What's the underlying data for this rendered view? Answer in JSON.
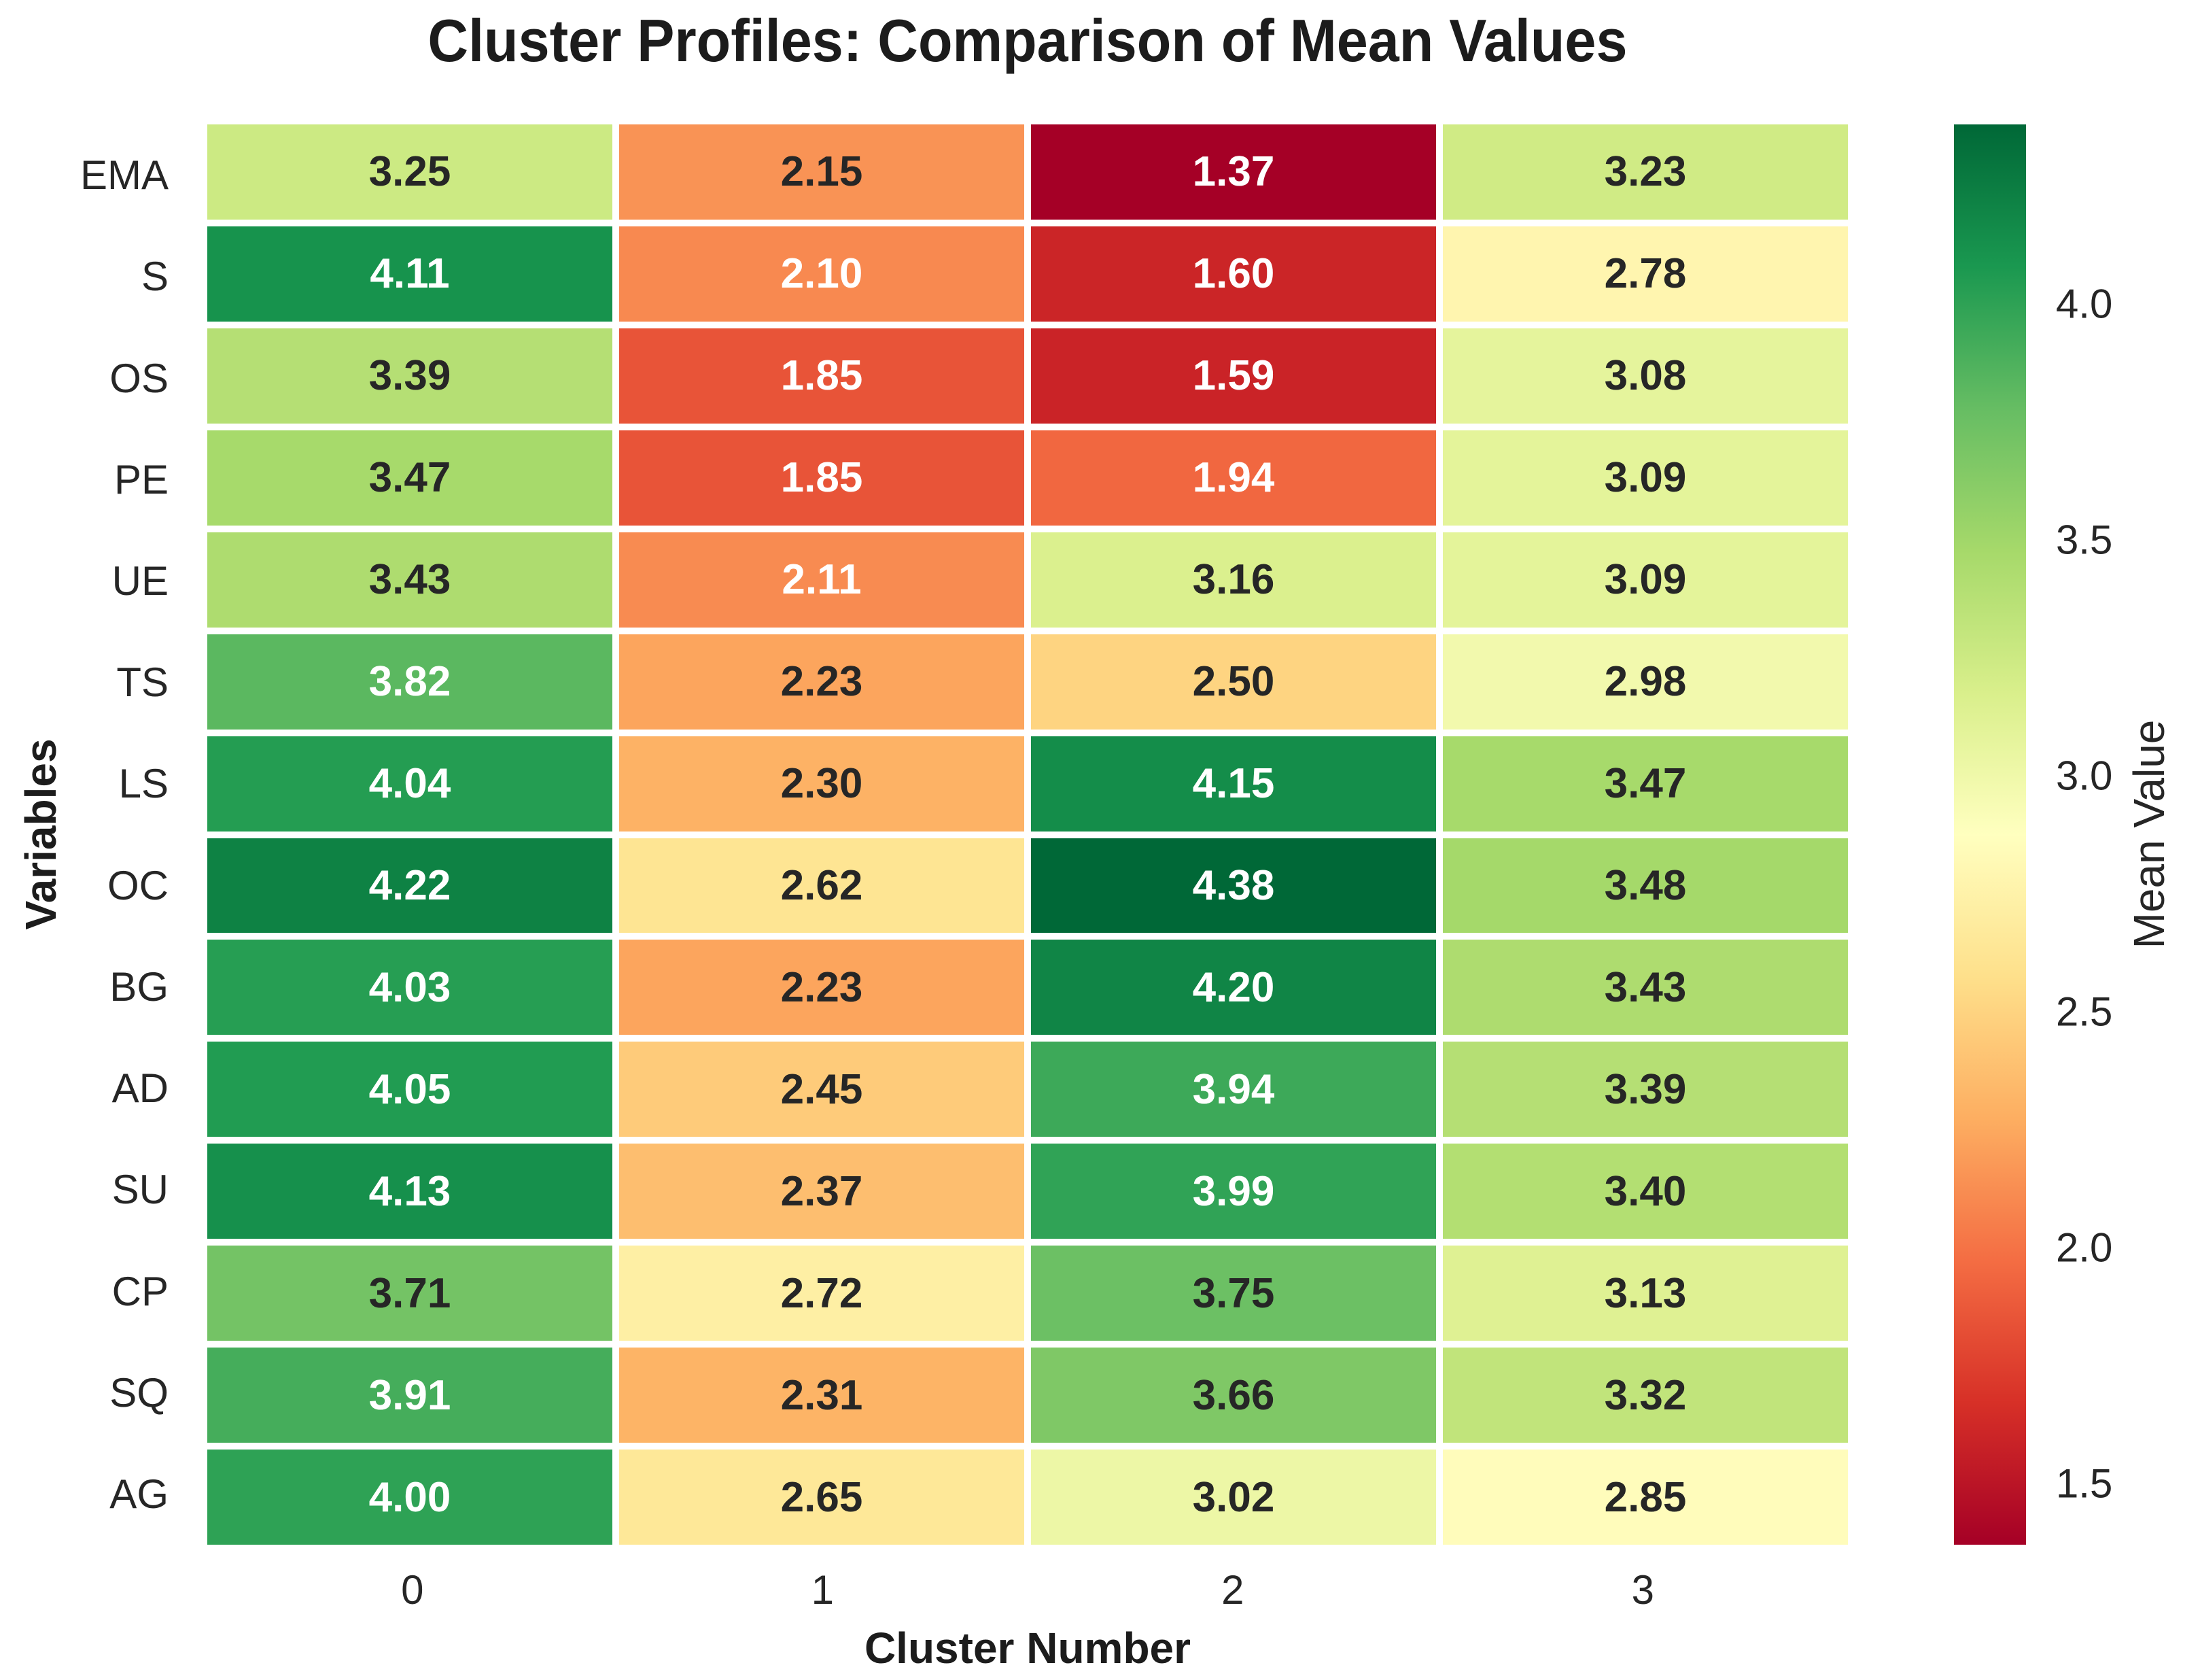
{
  "chart_data": {
    "type": "heatmap",
    "title": "Cluster Profiles: Comparison of Mean Values",
    "xlabel": "Cluster Number",
    "ylabel": "Variables",
    "x_categories": [
      "0",
      "1",
      "2",
      "3"
    ],
    "y_categories": [
      "EMA",
      "S",
      "OS",
      "PE",
      "UE",
      "TS",
      "LS",
      "OC",
      "BG",
      "AD",
      "SU",
      "CP",
      "SQ",
      "AG"
    ],
    "values": [
      [
        3.25,
        2.15,
        1.37,
        3.23
      ],
      [
        4.11,
        2.1,
        1.6,
        2.78
      ],
      [
        3.39,
        1.85,
        1.59,
        3.08
      ],
      [
        3.47,
        1.85,
        1.94,
        3.09
      ],
      [
        3.43,
        2.11,
        3.16,
        3.09
      ],
      [
        3.82,
        2.23,
        2.5,
        2.98
      ],
      [
        4.04,
        2.3,
        4.15,
        3.47
      ],
      [
        4.22,
        2.62,
        4.38,
        3.48
      ],
      [
        4.03,
        2.23,
        4.2,
        3.43
      ],
      [
        4.05,
        2.45,
        3.94,
        3.39
      ],
      [
        4.13,
        2.37,
        3.99,
        3.4
      ],
      [
        3.71,
        2.72,
        3.75,
        3.13
      ],
      [
        3.91,
        2.31,
        3.66,
        3.32
      ],
      [
        4.0,
        2.65,
        3.02,
        2.85
      ]
    ],
    "annotation_decimals": 2,
    "vmin": 1.37,
    "vmax": 4.38,
    "colormap": {
      "name": "RdYlGn",
      "anchor_colors": [
        "#a50026",
        "#d73027",
        "#f46d43",
        "#fdae61",
        "#fee08b",
        "#ffffbf",
        "#d9ef8b",
        "#a6d96a",
        "#66bd63",
        "#1a9850",
        "#006837"
      ]
    },
    "annotation_text_colors": {
      "dark": "#262626",
      "light": "#ffffff"
    },
    "gridline_color": "#ffffff",
    "legend_position": "right",
    "colorbar": {
      "label": "Mean Value",
      "tick_labels": [
        "4.0",
        "3.5",
        "3.0",
        "2.5",
        "2.0",
        "1.5"
      ],
      "tick_values": [
        4.0,
        3.5,
        3.0,
        2.5,
        2.0,
        1.5
      ]
    }
  }
}
